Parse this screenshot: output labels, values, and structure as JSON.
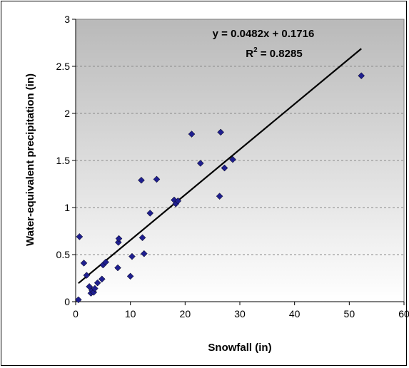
{
  "chart_data": {
    "type": "scatter",
    "title": "",
    "xlabel": "Snowfall (in)",
    "ylabel": "Water-equivalent precipitation (in)",
    "xlim": [
      0,
      60
    ],
    "ylim": [
      0,
      3
    ],
    "xticks": [
      "0",
      "10",
      "20",
      "30",
      "40",
      "50",
      "60"
    ],
    "yticks": [
      "0",
      "0.5",
      "1",
      "1.5",
      "2",
      "2.5",
      "3"
    ],
    "grid": true,
    "background": "gradient grey-to-white",
    "series": [
      {
        "marker": "diamond",
        "color": "#1f1f8f",
        "points": [
          [
            0.5,
            0.02
          ],
          [
            0.7,
            0.69
          ],
          [
            1.5,
            0.41
          ],
          [
            2.0,
            0.28
          ],
          [
            2.5,
            0.16
          ],
          [
            2.8,
            0.09
          ],
          [
            3.0,
            0.12
          ],
          [
            3.3,
            0.1
          ],
          [
            3.5,
            0.14
          ],
          [
            4.0,
            0.2
          ],
          [
            4.8,
            0.24
          ],
          [
            5.0,
            0.39
          ],
          [
            5.5,
            0.42
          ],
          [
            7.7,
            0.36
          ],
          [
            7.8,
            0.63
          ],
          [
            7.9,
            0.67
          ],
          [
            10.0,
            0.27
          ],
          [
            10.3,
            0.48
          ],
          [
            12.0,
            1.29
          ],
          [
            12.2,
            0.68
          ],
          [
            12.5,
            0.51
          ],
          [
            13.6,
            0.94
          ],
          [
            14.8,
            1.3
          ],
          [
            18.0,
            1.08
          ],
          [
            18.3,
            1.04
          ],
          [
            18.7,
            1.07
          ],
          [
            21.2,
            1.78
          ],
          [
            22.8,
            1.47
          ],
          [
            26.3,
            1.12
          ],
          [
            26.5,
            1.8
          ],
          [
            27.2,
            1.42
          ],
          [
            28.7,
            1.51
          ],
          [
            52.2,
            2.4
          ]
        ]
      }
    ],
    "trendline": {
      "slope": 0.0482,
      "intercept": 0.1716,
      "x_range": [
        0.5,
        52.2
      ],
      "color": "#000000"
    },
    "annotations": {
      "equation": "y = 0.0482x + 0.1716",
      "r2_label": "R",
      "r2_sup": "2",
      "r2_value": " = 0.8285"
    }
  }
}
